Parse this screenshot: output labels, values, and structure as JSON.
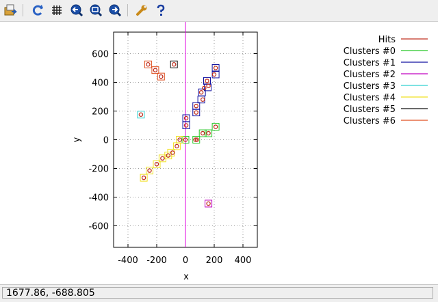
{
  "toolbar": {
    "icons": [
      "export-icon",
      "replot-icon",
      "grid-icon",
      "zoom-previous-icon",
      "zoom-icon",
      "zoom-next-icon",
      "settings-wrench-icon",
      "help-icon"
    ]
  },
  "status": {
    "coordinates": "1677.86, -688.805"
  },
  "chart_data": {
    "type": "scatter",
    "xlabel": "x",
    "ylabel": "y",
    "xlim": [
      -500,
      500
    ],
    "ylim": [
      -750,
      750
    ],
    "xticks": [
      -400,
      -200,
      0,
      200,
      400
    ],
    "yticks": [
      -600,
      -400,
      -200,
      0,
      200,
      400,
      600
    ],
    "xtick_labels": [
      "-400",
      "-200",
      "0",
      "200",
      "400"
    ],
    "ytick_labels": [
      "-600",
      "-400",
      "-200",
      "0",
      "200",
      "400",
      "600"
    ],
    "grid": true,
    "legend_position": "top-right",
    "vertical_line": {
      "x": 0,
      "color": "#e000e0"
    },
    "series": [
      {
        "name": "Hits",
        "color": "#c03020",
        "marker": "circle",
        "points": [
          [
            -260,
            525
          ],
          [
            -210,
            485
          ],
          [
            -170,
            440
          ],
          [
            -80,
            525
          ],
          [
            110,
            330
          ],
          [
            130,
            360
          ],
          [
            120,
            280
          ],
          [
            150,
            410
          ],
          [
            160,
            375
          ],
          [
            210,
            500
          ],
          [
            200,
            455
          ],
          [
            5,
            150
          ],
          [
            5,
            100
          ],
          [
            75,
            190
          ],
          [
            75,
            235
          ],
          [
            0,
            0
          ],
          [
            70,
            0
          ],
          [
            80,
            0
          ],
          [
            120,
            45
          ],
          [
            160,
            45
          ],
          [
            210,
            90
          ],
          [
            -40,
            0
          ],
          [
            -60,
            -45
          ],
          [
            -90,
            -90
          ],
          [
            -120,
            -110
          ],
          [
            -160,
            -130
          ],
          [
            -200,
            -170
          ],
          [
            -250,
            -215
          ],
          [
            -290,
            -265
          ],
          [
            -310,
            175
          ],
          [
            160,
            -445
          ]
        ]
      },
      {
        "name": "Clusters #0",
        "color": "#28c828",
        "marker": "square",
        "points": [
          [
            0,
            0
          ],
          [
            75,
            0
          ],
          [
            120,
            45
          ],
          [
            160,
            45
          ],
          [
            210,
            90
          ]
        ]
      },
      {
        "name": "Clusters #1",
        "color": "#1010a0",
        "marker": "square",
        "points": [
          [
            5,
            150
          ],
          [
            5,
            100
          ],
          [
            75,
            235
          ],
          [
            75,
            190
          ],
          [
            115,
            330
          ],
          [
            110,
            280
          ],
          [
            150,
            410
          ],
          [
            155,
            365
          ],
          [
            210,
            500
          ],
          [
            210,
            455
          ]
        ]
      },
      {
        "name": "Clusters #2",
        "color": "#c000c0",
        "marker": "square",
        "points": [
          [
            160,
            -445
          ]
        ]
      },
      {
        "name": "Clusters #3",
        "color": "#30d0d0",
        "marker": "square",
        "points": [
          [
            -310,
            175
          ]
        ]
      },
      {
        "name": "Clusters #4",
        "color": "#f0e020",
        "marker": "square",
        "points": [
          [
            -40,
            0
          ],
          [
            -60,
            -45
          ],
          [
            -100,
            -90
          ],
          [
            -120,
            -110
          ],
          [
            -160,
            -130
          ],
          [
            -200,
            -170
          ],
          [
            -250,
            -215
          ],
          [
            -290,
            -265
          ]
        ]
      },
      {
        "name": "Clusters #5",
        "color": "#101010",
        "marker": "square",
        "points": [
          [
            -80,
            525
          ]
        ]
      },
      {
        "name": "Clusters #6",
        "color": "#e05020",
        "marker": "square",
        "points": [
          [
            -260,
            525
          ],
          [
            -210,
            485
          ],
          [
            -170,
            440
          ]
        ]
      }
    ]
  }
}
